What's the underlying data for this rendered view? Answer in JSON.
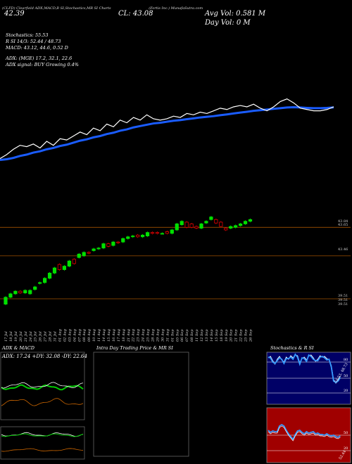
{
  "header": {
    "line1": [
      "(CLFD) Clearfield",
      "ADX,MACD,B",
      "SI,Stochastics,MR",
      "SI Charts",
      "(Fortis Inc.) MunafaSutra.com"
    ],
    "close_price": "42.39",
    "close_alt": "CL: 43.08",
    "avg_vol": "Avg Vol: 0.581 M",
    "day_vol": "Day Vol: 0   M"
  },
  "indicators": {
    "stochastics": "Stochastics: 55.53",
    "rsi_line": "R         SI 14/3: 52.44  / 48.73",
    "macd": "MACD: 43.12,  44.6,  0.52  D",
    "adx": "ADX:                                    (MGE) 17.2,  32.1,  22.6",
    "adx_signal": "ADX  signal:                              BUY Growing 0.4%"
  },
  "price_axis": {
    "labels": [
      "43.84",
      "43.65",
      "43.46",
      "39.51",
      "39.51",
      "39.51"
    ]
  },
  "dates": [
    "17 Jul",
    "18 Jul",
    "19 Jul",
    "20 Jul",
    "21 Jul",
    "24 Jul",
    "25 Jul",
    "26 Jul",
    "27 Jul",
    "28 Jul",
    "31 Jul",
    "01 Aug",
    "02 Aug",
    "03 Aug",
    "04 Aug",
    "07 Aug",
    "08 Aug",
    "09 Aug",
    "10 Aug",
    "11 Aug",
    "14 Aug",
    "15 Aug",
    "16 Aug",
    "17 Aug",
    "18 Aug",
    "21 Aug",
    "22 Aug",
    "23 Aug",
    "24 Aug",
    "25 Aug",
    "28 Aug",
    "29 Aug",
    "30 Aug",
    "31 Aug",
    "01 Sep",
    "05 Sep",
    "06 Sep",
    "07 Sep",
    "08 Sep",
    "11 Sep",
    "12 Sep",
    "13 Sep",
    "14 Sep",
    "15 Sep",
    "18 Sep",
    "19 Sep",
    "20 Sep",
    "21 Sep",
    "22 Sep",
    "25 Sep",
    "26 Sep"
  ],
  "panels": {
    "adx_title": "ADX  & MACD",
    "adx_values": "ADX: 17.24  +DY: 32.08  -DY: 22.64",
    "mrsi_title": "Intra  Day Trading Price  & MR                  SI",
    "stoch_title": "Stochastics & R                SI",
    "stoch_levels": [
      "80",
      "50",
      "20"
    ],
    "stoch_value": "55.53, 48.73",
    "rsi_levels": [
      "50",
      "20"
    ],
    "rsi_value": "52.44"
  },
  "colors": {
    "up": "#00e000",
    "down": "#e00000",
    "ma": "#1a5cff",
    "price": "#ffffff",
    "stoch_bg": "#000066",
    "rsi_bg": "#a00000"
  },
  "chart_data": {
    "type": "candlestick",
    "price_series": [
      40.0,
      40.3,
      40.7,
      41.0,
      40.9,
      41.1,
      40.8,
      41.3,
      41.0,
      41.5,
      41.4,
      41.7,
      42.0,
      41.8,
      42.3,
      42.1,
      42.6,
      42.4,
      42.9,
      42.7,
      43.1,
      42.9,
      43.3,
      43.0,
      42.9,
      43.0,
      43.2,
      43.1,
      43.4,
      43.3,
      43.5,
      43.4,
      43.6,
      43.8,
      43.7,
      43.9,
      44.0,
      43.9,
      44.1,
      43.8,
      43.6,
      43.9,
      44.3,
      44.5,
      44.2,
      43.8,
      43.7,
      43.6,
      43.6,
      43.7,
      43.9
    ],
    "ma_series": [
      39.9,
      39.95,
      40.05,
      40.2,
      40.3,
      40.45,
      40.55,
      40.7,
      40.8,
      40.95,
      41.05,
      41.2,
      41.35,
      41.45,
      41.6,
      41.7,
      41.85,
      41.95,
      42.1,
      42.2,
      42.35,
      42.45,
      42.55,
      42.65,
      42.7,
      42.78,
      42.85,
      42.9,
      42.97,
      43.03,
      43.1,
      43.15,
      43.2,
      43.27,
      43.33,
      43.4,
      43.47,
      43.53,
      43.6,
      43.65,
      43.7,
      43.75,
      43.8,
      43.85,
      43.87,
      43.85,
      43.82,
      43.8,
      43.8,
      43.82,
      43.86
    ],
    "candles": [
      {
        "o": 39.2,
        "c": 39.6
      },
      {
        "o": 39.6,
        "c": 39.8
      },
      {
        "o": 39.8,
        "c": 39.95
      },
      {
        "o": 39.95,
        "c": 39.85
      },
      {
        "o": 39.85,
        "c": 40.0
      },
      {
        "o": 39.8,
        "c": 40.0
      },
      {
        "o": 40.05,
        "c": 40.2
      },
      {
        "o": 40.4,
        "c": 40.45
      },
      {
        "o": 40.45,
        "c": 40.7
      },
      {
        "o": 40.7,
        "c": 41.0
      },
      {
        "o": 41.0,
        "c": 41.3
      },
      {
        "o": 41.5,
        "c": 41.2
      },
      {
        "o": 41.2,
        "c": 41.4
      },
      {
        "o": 41.4,
        "c": 41.7
      },
      {
        "o": 41.8,
        "c": 41.55
      },
      {
        "o": 41.9,
        "c": 42.1
      },
      {
        "o": 42.0,
        "c": 42.2
      },
      {
        "o": 42.2,
        "c": 42.15
      },
      {
        "o": 42.3,
        "c": 42.4
      },
      {
        "o": 42.4,
        "c": 42.45
      },
      {
        "o": 42.45,
        "c": 42.7
      },
      {
        "o": 42.7,
        "c": 42.55
      },
      {
        "o": 42.6,
        "c": 42.8
      },
      {
        "o": 42.8,
        "c": 42.75
      },
      {
        "o": 42.8,
        "c": 43.0
      },
      {
        "o": 43.0,
        "c": 43.1
      },
      {
        "o": 43.1,
        "c": 43.15
      },
      {
        "o": 43.2,
        "c": 43.1
      },
      {
        "o": 43.1,
        "c": 43.2
      },
      {
        "o": 43.15,
        "c": 43.35
      },
      {
        "o": 43.35,
        "c": 43.3
      },
      {
        "o": 43.35,
        "c": 43.3
      },
      {
        "o": 43.3,
        "c": 43.3
      },
      {
        "o": 43.4,
        "c": 43.3
      },
      {
        "o": 43.3,
        "c": 43.5
      },
      {
        "o": 43.5,
        "c": 43.85
      },
      {
        "o": 43.8,
        "c": 44.0
      },
      {
        "o": 43.95,
        "c": 43.65
      },
      {
        "o": 43.85,
        "c": 43.65
      },
      {
        "o": 43.7,
        "c": 43.6
      },
      {
        "o": 43.6,
        "c": 43.85
      },
      {
        "o": 43.9,
        "c": 44.0
      },
      {
        "o": 44.1,
        "c": 44.25
      },
      {
        "o": 44.1,
        "c": 43.9
      },
      {
        "o": 43.95,
        "c": 43.7
      },
      {
        "o": 43.6,
        "c": 43.5
      },
      {
        "o": 43.6,
        "c": 43.7
      },
      {
        "o": 43.65,
        "c": 43.75
      },
      {
        "o": 43.75,
        "c": 43.85
      },
      {
        "o": 43.85,
        "c": 44.0
      },
      {
        "o": 44.0,
        "c": 44.1
      }
    ],
    "ylim": [
      38.9,
      44.6
    ],
    "h_lines": [
      43.65,
      42.0,
      39.51
    ]
  }
}
